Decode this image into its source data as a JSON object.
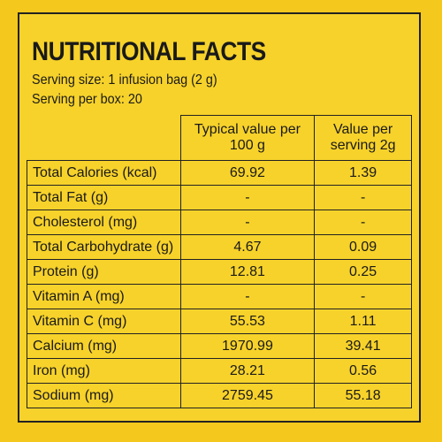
{
  "header": {
    "title": "NUTRITIONAL FACTS",
    "serving_size": "Serving size: 1 infusion bag (2 g)",
    "servings": "Serving per box: 20"
  },
  "table": {
    "columns": [
      "",
      "Typical value per 100 g",
      "Value per serving 2g"
    ],
    "rows": [
      [
        "Total Calories (kcal)",
        "69.92",
        "1.39"
      ],
      [
        "Total Fat (g)",
        "-",
        "-"
      ],
      [
        "Cholesterol (mg)",
        "-",
        "-"
      ],
      [
        "Total Carbohydrate (g)",
        "4.67",
        "0.09"
      ],
      [
        "Protein (g)",
        "12.81",
        "0.25"
      ],
      [
        "Vitamin A (mg)",
        "-",
        "-"
      ],
      [
        "Vitamin C (mg)",
        "55.53",
        "1.11"
      ],
      [
        "Calcium (mg)",
        "1970.99",
        "39.41"
      ],
      [
        "Iron (mg)",
        "28.21",
        "0.56"
      ],
      [
        "Sodium (mg)",
        "2759.45",
        "55.18"
      ]
    ]
  }
}
